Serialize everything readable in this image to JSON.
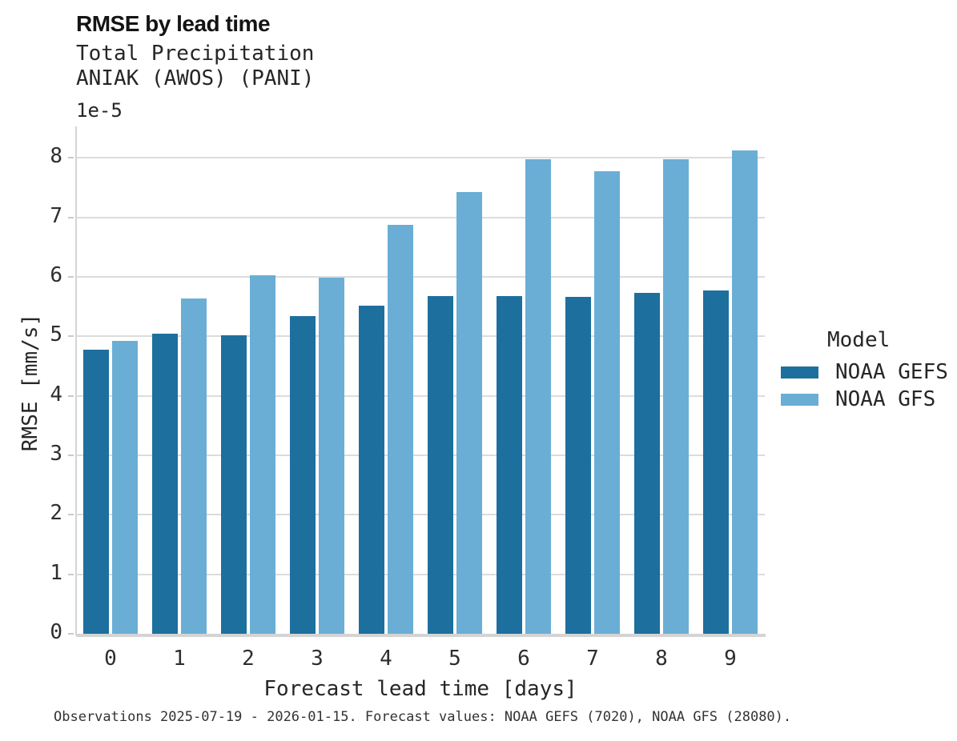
{
  "header": {
    "title": "RMSE by lead time"
  },
  "chart_data": {
    "type": "bar",
    "title": "RMSE by lead time",
    "subtitle": [
      "Total Precipitation",
      "ANIAK (AWOS) (PANI)"
    ],
    "categories": [
      "0",
      "1",
      "2",
      "3",
      "4",
      "5",
      "6",
      "7",
      "8",
      "9"
    ],
    "series": [
      {
        "name": "NOAA GEFS",
        "color": "#1d6f9e",
        "values": [
          4.78,
          5.05,
          5.02,
          5.34,
          5.51,
          5.68,
          5.68,
          5.66,
          5.73,
          5.77
        ]
      },
      {
        "name": "NOAA GFS",
        "color": "#6aaed5",
        "values": [
          4.92,
          5.63,
          6.02,
          5.99,
          6.87,
          7.42,
          7.98,
          7.78,
          7.97,
          8.12
        ]
      }
    ],
    "value_scale_note": "values are in units of 1e-5 mm/s as indicated by the axis offset label",
    "xlabel": "Forecast lead time [days]",
    "ylabel": "RMSE [mm/s]",
    "y_offset_label": "1e-5",
    "ylim": [
      0,
      8.5
    ],
    "yticks": [
      0,
      1,
      2,
      3,
      4,
      5,
      6,
      7,
      8
    ],
    "grid": "horizontal",
    "legend": {
      "title": "Model",
      "position": "right",
      "entries": [
        {
          "label": "NOAA GEFS",
          "color": "#1d6f9e"
        },
        {
          "label": "NOAA GFS",
          "color": "#6aaed5"
        }
      ]
    },
    "colors": {
      "grid": "#dcdcdc",
      "spine": "#d4d4d4",
      "tick": "#c9c9c9"
    }
  },
  "caption": "Observations 2025-07-19 - 2026-01-15. Forecast values: NOAA GEFS (7020), NOAA GFS (28080)."
}
